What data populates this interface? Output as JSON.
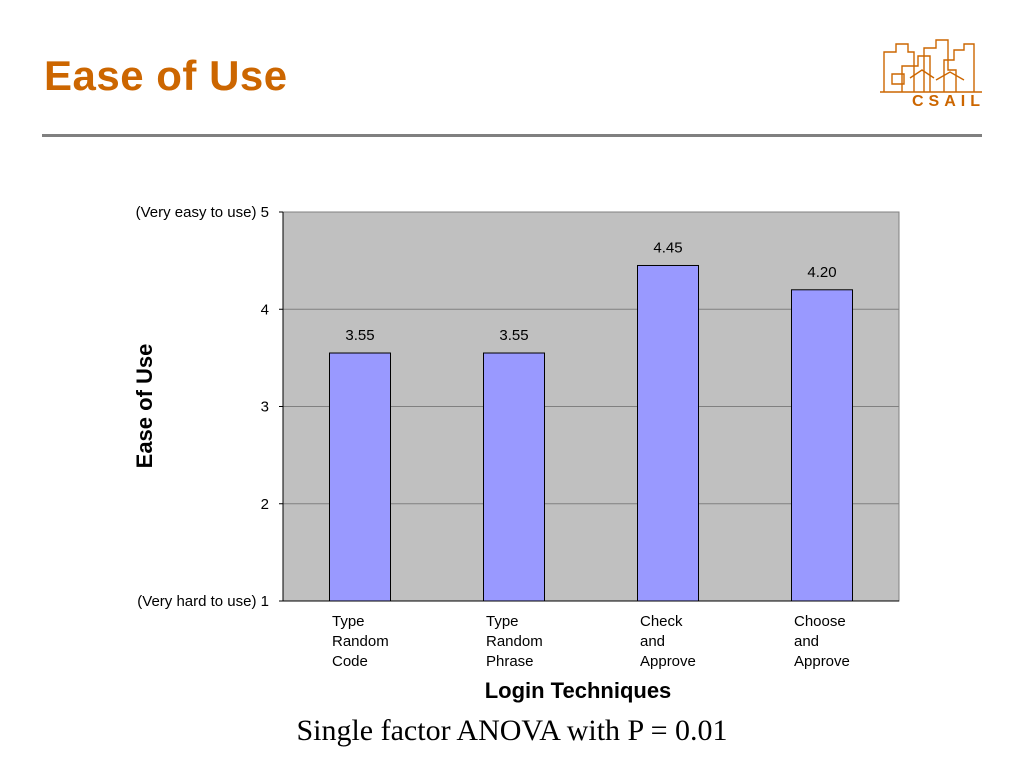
{
  "slide": {
    "title": "Ease of Use",
    "logo_text": "CSAIL",
    "caption": "Single factor ANOVA with P = 0.01"
  },
  "colors": {
    "title": "#CC6600",
    "plot_background": "#C0C0C0",
    "bar_fill": "#9999FF",
    "bar_stroke": "#000000",
    "gridline": "#808080",
    "logo": "#CC6600"
  },
  "chart_data": {
    "type": "bar",
    "xlabel": "Login Techniques",
    "ylabel": "Ease of Use",
    "ylim": [
      1,
      5
    ],
    "grid": true,
    "legend": "none",
    "yticks": [
      {
        "value": 5,
        "label": "(Very easy to use) 5"
      },
      {
        "value": 4,
        "label": "4"
      },
      {
        "value": 3,
        "label": "3"
      },
      {
        "value": 2,
        "label": "2"
      },
      {
        "value": 1,
        "label": "(Very hard to use) 1"
      }
    ],
    "categories": [
      [
        "Type",
        "Random",
        "Code"
      ],
      [
        "Type",
        "Random",
        "Phrase"
      ],
      [
        "Check",
        "and",
        "Approve"
      ],
      [
        "Choose",
        "and",
        "Approve"
      ]
    ],
    "values": [
      3.55,
      3.55,
      4.45,
      4.2
    ],
    "data_labels": [
      "3.55",
      "3.55",
      "4.45",
      "4.20"
    ]
  }
}
